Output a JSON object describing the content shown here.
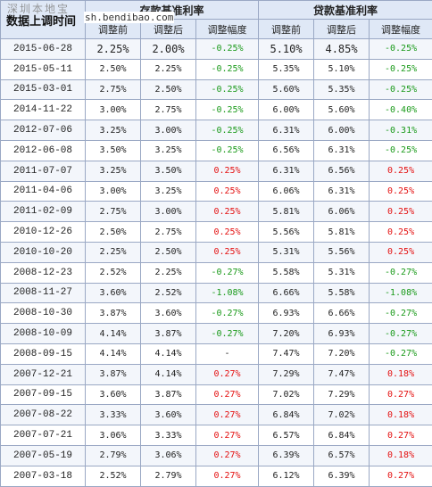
{
  "watermark": "深圳本地宝",
  "watermark_url": "sh.bendibao.com",
  "header": {
    "corner": "数据上调时间",
    "deposit_group": "存款基准利率",
    "loan_group": "贷款基准利率",
    "before": "调整前",
    "after": "调整后",
    "change": "调整幅度"
  },
  "rows": [
    {
      "date": "2015-06-28",
      "d_before": "2.25%",
      "d_after": "2.00%",
      "d_change": "-0.25%",
      "l_before": "5.10%",
      "l_after": "4.85%",
      "l_change": "-0.25%"
    },
    {
      "date": "2015-05-11",
      "d_before": "2.50%",
      "d_after": "2.25%",
      "d_change": "-0.25%",
      "l_before": "5.35%",
      "l_after": "5.10%",
      "l_change": "-0.25%"
    },
    {
      "date": "2015-03-01",
      "d_before": "2.75%",
      "d_after": "2.50%",
      "d_change": "-0.25%",
      "l_before": "5.60%",
      "l_after": "5.35%",
      "l_change": "-0.25%"
    },
    {
      "date": "2014-11-22",
      "d_before": "3.00%",
      "d_after": "2.75%",
      "d_change": "-0.25%",
      "l_before": "6.00%",
      "l_after": "5.60%",
      "l_change": "-0.40%"
    },
    {
      "date": "2012-07-06",
      "d_before": "3.25%",
      "d_after": "3.00%",
      "d_change": "-0.25%",
      "l_before": "6.31%",
      "l_after": "6.00%",
      "l_change": "-0.31%"
    },
    {
      "date": "2012-06-08",
      "d_before": "3.50%",
      "d_after": "3.25%",
      "d_change": "-0.25%",
      "l_before": "6.56%",
      "l_after": "6.31%",
      "l_change": "-0.25%"
    },
    {
      "date": "2011-07-07",
      "d_before": "3.25%",
      "d_after": "3.50%",
      "d_change": "0.25%",
      "l_before": "6.31%",
      "l_after": "6.56%",
      "l_change": "0.25%"
    },
    {
      "date": "2011-04-06",
      "d_before": "3.00%",
      "d_after": "3.25%",
      "d_change": "0.25%",
      "l_before": "6.06%",
      "l_after": "6.31%",
      "l_change": "0.25%"
    },
    {
      "date": "2011-02-09",
      "d_before": "2.75%",
      "d_after": "3.00%",
      "d_change": "0.25%",
      "l_before": "5.81%",
      "l_after": "6.06%",
      "l_change": "0.25%"
    },
    {
      "date": "2010-12-26",
      "d_before": "2.50%",
      "d_after": "2.75%",
      "d_change": "0.25%",
      "l_before": "5.56%",
      "l_after": "5.81%",
      "l_change": "0.25%"
    },
    {
      "date": "2010-10-20",
      "d_before": "2.25%",
      "d_after": "2.50%",
      "d_change": "0.25%",
      "l_before": "5.31%",
      "l_after": "5.56%",
      "l_change": "0.25%"
    },
    {
      "date": "2008-12-23",
      "d_before": "2.52%",
      "d_after": "2.25%",
      "d_change": "-0.27%",
      "l_before": "5.58%",
      "l_after": "5.31%",
      "l_change": "-0.27%"
    },
    {
      "date": "2008-11-27",
      "d_before": "3.60%",
      "d_after": "2.52%",
      "d_change": "-1.08%",
      "l_before": "6.66%",
      "l_after": "5.58%",
      "l_change": "-1.08%"
    },
    {
      "date": "2008-10-30",
      "d_before": "3.87%",
      "d_after": "3.60%",
      "d_change": "-0.27%",
      "l_before": "6.93%",
      "l_after": "6.66%",
      "l_change": "-0.27%"
    },
    {
      "date": "2008-10-09",
      "d_before": "4.14%",
      "d_after": "3.87%",
      "d_change": "-0.27%",
      "l_before": "7.20%",
      "l_after": "6.93%",
      "l_change": "-0.27%"
    },
    {
      "date": "2008-09-15",
      "d_before": "4.14%",
      "d_after": "4.14%",
      "d_change": "-",
      "l_before": "7.47%",
      "l_after": "7.20%",
      "l_change": "-0.27%"
    },
    {
      "date": "2007-12-21",
      "d_before": "3.87%",
      "d_after": "4.14%",
      "d_change": "0.27%",
      "l_before": "7.29%",
      "l_after": "7.47%",
      "l_change": "0.18%"
    },
    {
      "date": "2007-09-15",
      "d_before": "3.60%",
      "d_after": "3.87%",
      "d_change": "0.27%",
      "l_before": "7.02%",
      "l_after": "7.29%",
      "l_change": "0.27%"
    },
    {
      "date": "2007-08-22",
      "d_before": "3.33%",
      "d_after": "3.60%",
      "d_change": "0.27%",
      "l_before": "6.84%",
      "l_after": "7.02%",
      "l_change": "0.18%"
    },
    {
      "date": "2007-07-21",
      "d_before": "3.06%",
      "d_after": "3.33%",
      "d_change": "0.27%",
      "l_before": "6.57%",
      "l_after": "6.84%",
      "l_change": "0.27%"
    },
    {
      "date": "2007-05-19",
      "d_before": "2.79%",
      "d_after": "3.06%",
      "d_change": "0.27%",
      "l_before": "6.39%",
      "l_after": "6.57%",
      "l_change": "0.18%"
    },
    {
      "date": "2007-03-18",
      "d_before": "2.52%",
      "d_after": "2.79%",
      "d_change": "0.27%",
      "l_before": "6.12%",
      "l_after": "6.39%",
      "l_change": "0.27%"
    }
  ],
  "colors": {
    "header_bg": "#dfe8f6",
    "row_alt": "#f3f6fb",
    "border": "#9aa8c4",
    "increase": "#e41010",
    "decrease": "#1a9a1a"
  }
}
